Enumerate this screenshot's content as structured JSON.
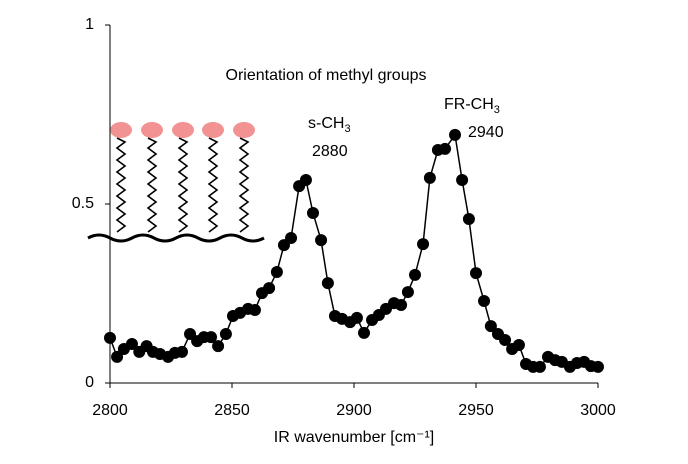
{
  "chart_data": {
    "type": "line",
    "x_label": "IR wavenumber [cm⁻¹]",
    "inset_title": "Orientation of methyl groups",
    "annotations": [
      {
        "text": "s-CH",
        "sub": "3"
      },
      {
        "text": "2880"
      },
      {
        "text": "FR-CH",
        "sub": "3"
      },
      {
        "text": "2940"
      }
    ],
    "series": [
      {
        "name": "spectrum",
        "color": "#000000",
        "x": [
          2800,
          2802.9,
          2805.7,
          2809,
          2812,
          2815,
          2817.6,
          2820.5,
          2823.8,
          2826.6,
          2829.5,
          2832.8,
          2835.7,
          2838.5,
          2841.4,
          2844.3,
          2847.5,
          2850.4,
          2853.3,
          2856.6,
          2859.4,
          2862.3,
          2865.2,
          2868.4,
          2871.3,
          2874.2,
          2877.5,
          2880.3,
          2883.2,
          2886.5,
          2889.3,
          2892.2,
          2895.1,
          2898.4,
          2901.2,
          2904.1,
          2907.4,
          2910.2,
          2913.1,
          2916.4,
          2919.3,
          2922.1,
          2925,
          2928.3,
          2931.1,
          2934.4,
          2937.3,
          2941.4,
          2944.3,
          2947.1,
          2950,
          2953.3,
          2956.1,
          2959,
          2961.9,
          2964.8,
          2967.6,
          2970.5,
          2973.4,
          2976.2,
          2979.5,
          2982.4,
          2985.2,
          2988.5,
          2991.4,
          2994.3,
          2997.1,
          3000
        ],
        "values": [
          0.126,
          0.073,
          0.095,
          0.109,
          0.087,
          0.103,
          0.087,
          0.081,
          0.073,
          0.084,
          0.087,
          0.137,
          0.117,
          0.128,
          0.128,
          0.103,
          0.137,
          0.187,
          0.196,
          0.207,
          0.204,
          0.251,
          0.265,
          0.31,
          0.385,
          0.405,
          0.55,
          0.567,
          0.475,
          0.399,
          0.279,
          0.187,
          0.179,
          0.17,
          0.182,
          0.14,
          0.176,
          0.19,
          0.207,
          0.223,
          0.218,
          0.254,
          0.302,
          0.388,
          0.573,
          0.651,
          0.654,
          0.693,
          0.567,
          0.458,
          0.307,
          0.229,
          0.159,
          0.137,
          0.12,
          0.095,
          0.106,
          0.053,
          0.045,
          0.045,
          0.073,
          0.064,
          0.059,
          0.045,
          0.056,
          0.059,
          0.047,
          0.045
        ]
      }
    ],
    "xlim": [
      2800,
      3000
    ],
    "xticks": [
      2800,
      2850,
      2900,
      2950,
      3000
    ],
    "ylim": [
      0,
      1
    ],
    "yticks": [
      0,
      0.5,
      1
    ]
  }
}
